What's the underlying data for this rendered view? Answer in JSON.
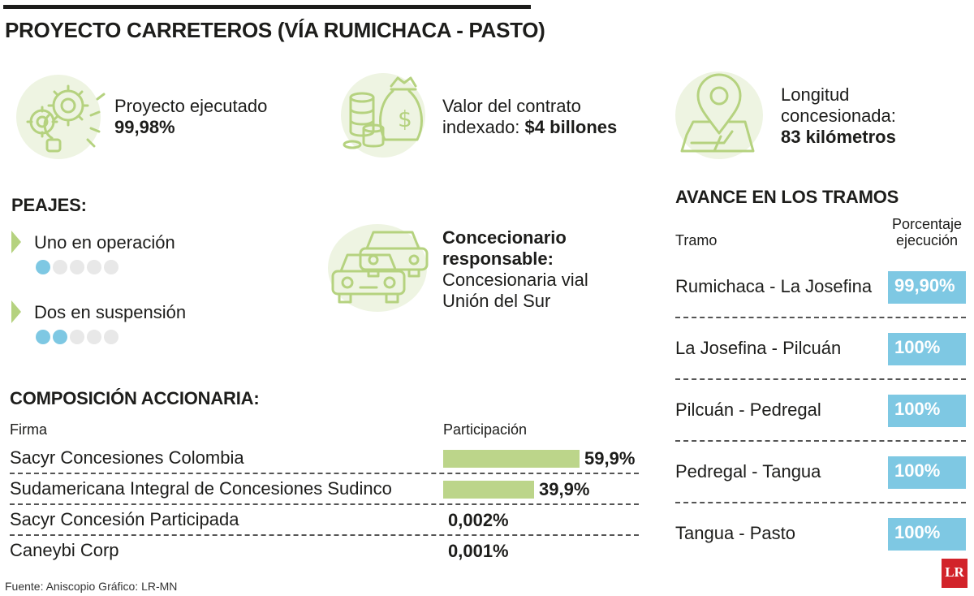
{
  "title": "PROYECTO CARRETEROS (VÍA RUMICHACA - PASTO)",
  "colors": {
    "accent_green": "#b5d27f",
    "accent_blue": "#7ec8e3",
    "icon_bg": "#eef4e2"
  },
  "stats": {
    "proyecto": {
      "icon": "gears-lightbulb-icon",
      "label": "Proyecto ejecutado",
      "value": "99,98%"
    },
    "valor": {
      "icon": "money-bag-coins-icon",
      "label_line1": "Valor del contrato",
      "label_line2": "indexado:",
      "value": "$4 billones"
    },
    "longitud": {
      "icon": "map-pin-icon",
      "label_line1": "Longitud",
      "label_line2": "concesionada:",
      "value": "83 kilómetros"
    }
  },
  "peajes": {
    "title": "PEAJES:",
    "items": [
      {
        "label": "Uno en operación",
        "active": 1,
        "total": 5
      },
      {
        "label": "Dos en suspensión",
        "active": 2,
        "total": 5
      }
    ]
  },
  "concesionario": {
    "icon": "cars-icon",
    "heading_line1": "Concecionario",
    "heading_line2": "responsable:",
    "name_line1": "Concesionaria vial",
    "name_line2": "Unión del Sur"
  },
  "composicion": {
    "title": "COMPOSICIÓN ACCIONARIA:",
    "col_firma": "Firma",
    "col_participacion": "Participación",
    "rows": [
      {
        "firma": "Sacyr Concesiones Colombia",
        "valor": "59,9%",
        "pct": 59.9
      },
      {
        "firma": "Sudamericana Integral de Concesiones Sudinco",
        "valor": "39,9%",
        "pct": 39.9
      },
      {
        "firma": "Sacyr Concesión Participada",
        "valor": "0,002%",
        "pct": 0.002
      },
      {
        "firma": "Caneybi Corp",
        "valor": "0,001%",
        "pct": 0.001
      }
    ]
  },
  "tramos": {
    "title": "AVANCE EN LOS TRAMOS",
    "col_tramo": "Tramo",
    "col_pct_line1": "Porcentaje",
    "col_pct_line2": "ejecución",
    "rows": [
      {
        "tramo": "Rumichaca - La Josefina",
        "valor": "99,90%"
      },
      {
        "tramo": "La Josefina - Pilcuán",
        "valor": "100%"
      },
      {
        "tramo": "Pilcuán - Pedregal",
        "valor": "100%"
      },
      {
        "tramo": "Pedregal - Tangua",
        "valor": "100%"
      },
      {
        "tramo": "Tangua - Pasto",
        "valor": "100%"
      }
    ]
  },
  "source": "Fuente: Aniscopio Gráfico: LR-MN",
  "logo": "LR"
}
